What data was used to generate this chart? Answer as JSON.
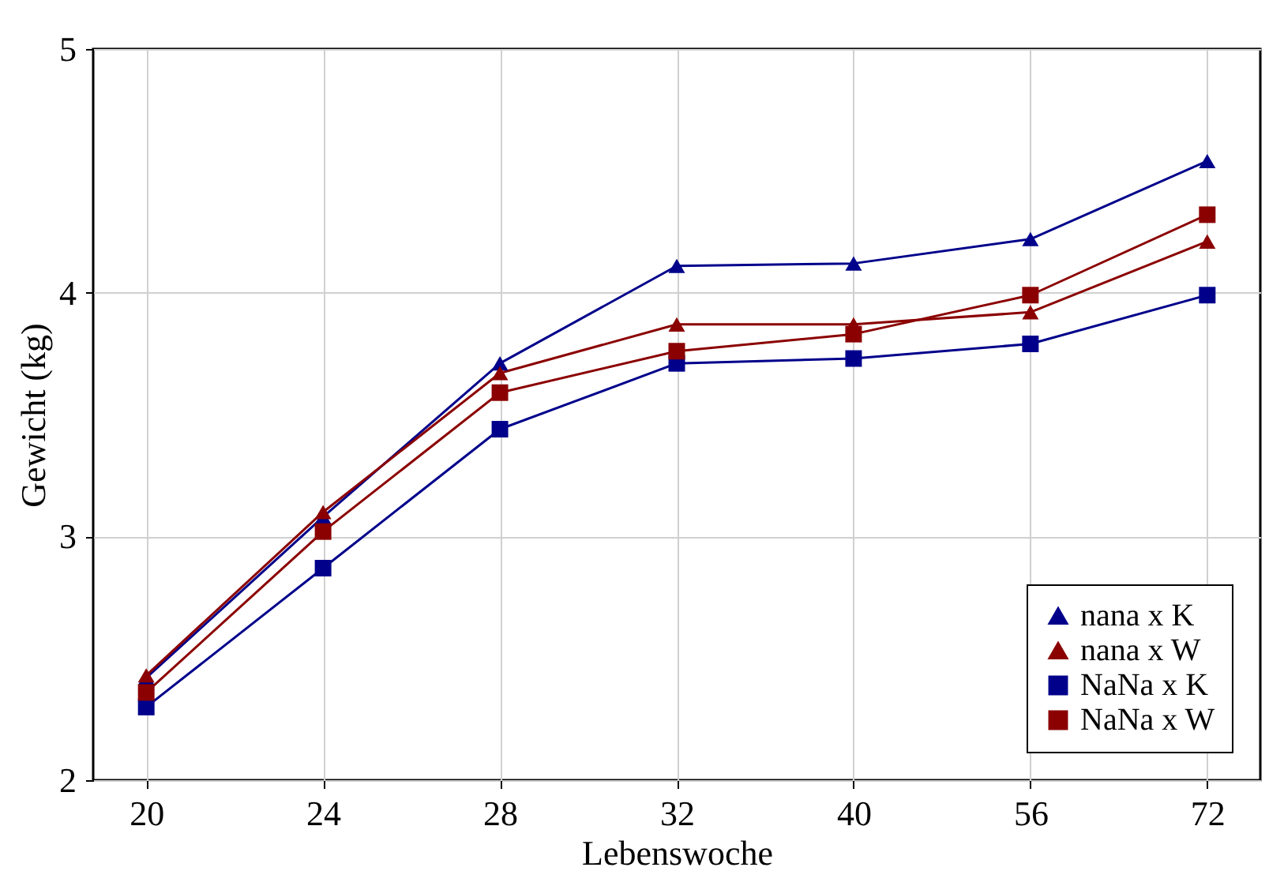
{
  "chart_data": {
    "type": "line",
    "xlabel": "Lebenswoche",
    "ylabel": "Gewicht (kg)",
    "categories": [
      "20",
      "24",
      "28",
      "32",
      "40",
      "56",
      "72"
    ],
    "series": [
      {
        "name": "nana x K",
        "color": "#00008b",
        "marker": "triangle",
        "values": [
          2.42,
          3.08,
          3.71,
          4.11,
          4.12,
          4.22,
          4.54
        ]
      },
      {
        "name": "nana x W",
        "color": "#8b0000",
        "marker": "triangle",
        "values": [
          2.43,
          3.1,
          3.67,
          3.87,
          3.87,
          3.92,
          4.21
        ]
      },
      {
        "name": "NaNa x K",
        "color": "#00008b",
        "marker": "square",
        "values": [
          2.3,
          2.87,
          3.44,
          3.71,
          3.73,
          3.79,
          3.99
        ]
      },
      {
        "name": "NaNa x W",
        "color": "#8b0000",
        "marker": "square",
        "values": [
          2.36,
          3.02,
          3.59,
          3.76,
          3.83,
          3.99,
          4.32
        ]
      }
    ],
    "ylim": [
      2,
      5
    ],
    "yticks": [
      2,
      3,
      4,
      5
    ],
    "grid": true,
    "legend": "bottom right",
    "line_style": "solid"
  }
}
